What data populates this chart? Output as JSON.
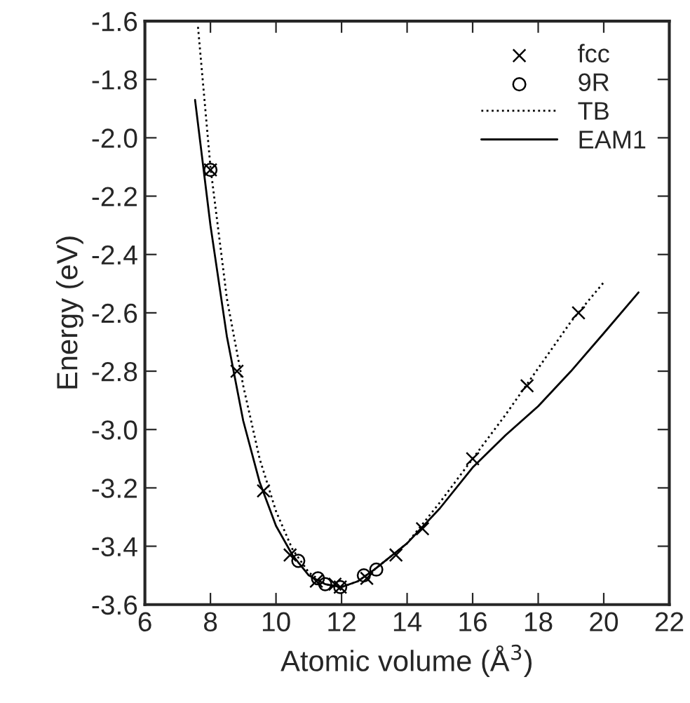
{
  "chart_data": {
    "type": "scatter",
    "xlabel": "Atomic volume (Å$^{3}$)",
    "ylabel": "Energy (eV)",
    "xlim": [
      6,
      22
    ],
    "xticks": [
      6,
      8,
      10,
      12,
      14,
      16,
      18,
      20,
      22
    ],
    "ylim": [
      -3.6,
      -1.6
    ],
    "yticks": [
      -3.6,
      -3.4,
      -3.2,
      {
        "value": -3.0,
        "label": "-3.0"
      },
      -2.8,
      -2.6,
      -2.4,
      -2.2,
      {
        "value": -2.0,
        "label": "-2.0"
      },
      -1.8,
      -1.6
    ],
    "grid": false,
    "legend": "top right",
    "series": [
      {
        "name": "fcc",
        "marker": "cross",
        "color": "#000000",
        "x": [
          8.0,
          8.81,
          9.62,
          10.43,
          11.23,
          11.8,
          11.96,
          12.77,
          13.66,
          14.47,
          16.0,
          17.66,
          19.23
        ],
        "values": [
          -2.11,
          -2.8,
          -3.21,
          -3.43,
          -3.52,
          -3.53,
          -3.54,
          -3.51,
          -3.43,
          -3.34,
          -3.1,
          -2.85,
          -2.6
        ]
      },
      {
        "name": "9R",
        "marker": "circle",
        "color": "#000000",
        "x": [
          8.0,
          10.68,
          11.28,
          11.5,
          11.96,
          12.68,
          13.06
        ],
        "values": [
          -2.11,
          -3.45,
          -3.51,
          -3.53,
          -3.54,
          -3.5,
          -3.48
        ]
      },
      {
        "name": "TB",
        "type": "line",
        "line_style": "dotted",
        "color": "#000000",
        "x": [
          7.62,
          8.0,
          8.5,
          9.0,
          9.5,
          10.0,
          10.5,
          11.0,
          11.5,
          12.0,
          12.5,
          13.0,
          14.0,
          15.0,
          16.0,
          17.0,
          18.0,
          19.0,
          20.04
        ],
        "values": [
          -1.62,
          -2.1,
          -2.55,
          -2.85,
          -3.1,
          -3.28,
          -3.41,
          -3.49,
          -3.53,
          -3.54,
          -3.52,
          -3.48,
          -3.39,
          -3.25,
          -3.1,
          -2.95,
          -2.79,
          -2.63,
          -2.49
        ]
      },
      {
        "name": "EAM1",
        "type": "line",
        "line_style": "solid",
        "color": "#000000",
        "x": [
          7.53,
          8.0,
          8.5,
          9.0,
          9.5,
          10.0,
          10.5,
          11.0,
          11.5,
          12.0,
          12.5,
          13.0,
          14.0,
          15.0,
          16.0,
          17.0,
          18.0,
          19.0,
          20.0,
          21.06
        ],
        "values": [
          -1.87,
          -2.3,
          -2.68,
          -2.97,
          -3.18,
          -3.33,
          -3.43,
          -3.5,
          -3.53,
          -3.54,
          -3.52,
          -3.48,
          -3.39,
          -3.27,
          -3.13,
          -3.02,
          -2.92,
          -2.8,
          -2.67,
          -2.53
        ]
      }
    ]
  }
}
